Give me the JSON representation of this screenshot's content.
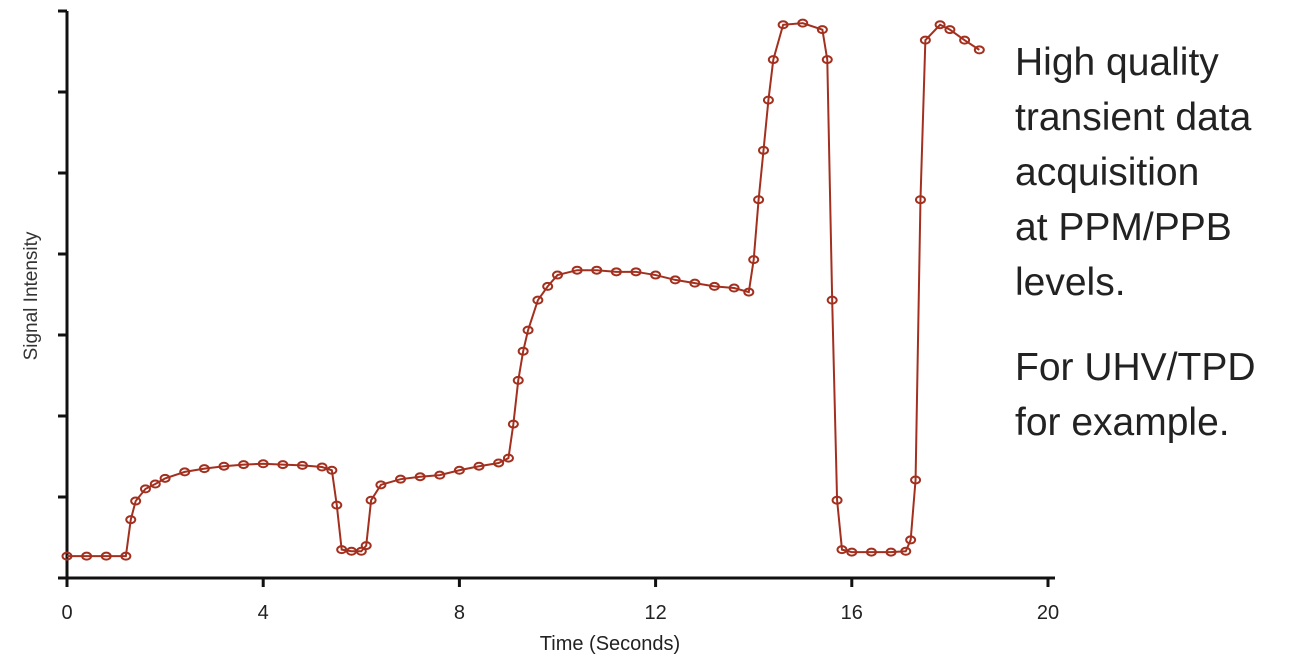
{
  "chart_data": {
    "type": "line",
    "x_label": "Time (Seconds)",
    "y_label": "Signal Intensity",
    "x": [
      0,
      0.4,
      0.8,
      1.2,
      1.3,
      1.4,
      1.6,
      1.8,
      2.0,
      2.4,
      2.8,
      3.2,
      3.6,
      4.0,
      4.4,
      4.8,
      5.2,
      5.4,
      5.5,
      5.6,
      5.8,
      6.0,
      6.1,
      6.2,
      6.4,
      6.8,
      7.2,
      7.6,
      8.0,
      8.4,
      8.8,
      9.0,
      9.1,
      9.2,
      9.3,
      9.4,
      9.6,
      9.8,
      10.0,
      10.4,
      10.8,
      11.2,
      11.6,
      12.0,
      12.4,
      12.8,
      13.2,
      13.6,
      13.9,
      14.0,
      14.1,
      14.2,
      14.3,
      14.4,
      14.6,
      15.0,
      15.4,
      15.5,
      15.6,
      15.7,
      15.8,
      16.0,
      16.4,
      16.8,
      17.1,
      17.2,
      17.3,
      17.4,
      17.5,
      17.8,
      18.0,
      18.3,
      18.6
    ],
    "series": [
      {
        "color": "#a3301f",
        "values": [
          0.27,
          0.27,
          0.27,
          0.27,
          0.72,
          0.95,
          1.1,
          1.16,
          1.23,
          1.31,
          1.35,
          1.38,
          1.4,
          1.41,
          1.4,
          1.39,
          1.37,
          1.33,
          0.9,
          0.35,
          0.33,
          0.33,
          0.4,
          0.96,
          1.15,
          1.22,
          1.25,
          1.27,
          1.33,
          1.38,
          1.42,
          1.48,
          1.9,
          2.44,
          2.8,
          3.06,
          3.43,
          3.6,
          3.74,
          3.8,
          3.8,
          3.78,
          3.78,
          3.74,
          3.68,
          3.64,
          3.6,
          3.58,
          3.53,
          3.93,
          4.67,
          5.28,
          5.9,
          6.4,
          6.83,
          6.85,
          6.77,
          6.4,
          3.43,
          0.96,
          0.35,
          0.32,
          0.32,
          0.32,
          0.33,
          0.47,
          1.21,
          4.67,
          6.64,
          6.83,
          6.77,
          6.64,
          6.52
        ]
      }
    ],
    "xlim": [
      0,
      20
    ],
    "xticks": [
      0,
      4,
      8,
      12,
      16,
      20
    ],
    "ylim": [
      0,
      7
    ],
    "yticks": [
      0,
      1,
      2,
      3,
      4,
      5,
      6,
      7
    ],
    "annotations": [
      [
        "High quality",
        "transient data",
        "acquisition",
        "at PPM/PPB",
        "levels."
      ],
      [
        "For UHV/TPD",
        "for example."
      ]
    ]
  }
}
